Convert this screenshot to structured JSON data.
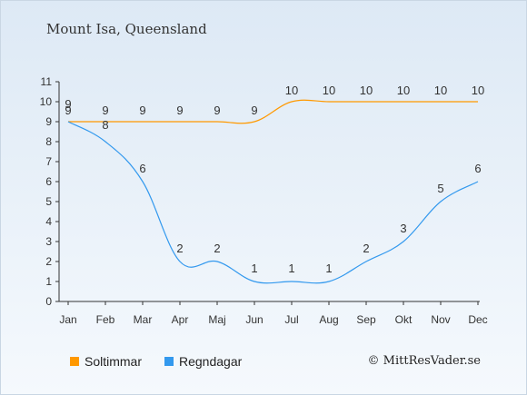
{
  "title": "Mount Isa, Queensland",
  "credit": "© MittResVader.se",
  "colors": {
    "sun": "#ff9900",
    "rain": "#3399ee"
  },
  "chart_data": {
    "type": "line",
    "categories": [
      "Jan",
      "Feb",
      "Mar",
      "Apr",
      "Maj",
      "Jun",
      "Jul",
      "Aug",
      "Sep",
      "Okt",
      "Nov",
      "Dec"
    ],
    "ylim": [
      0,
      11
    ],
    "yticks": [
      0,
      1,
      2,
      3,
      4,
      5,
      6,
      7,
      8,
      9,
      10,
      11
    ],
    "series": [
      {
        "name": "Soltimmar",
        "color": "#ff9900",
        "values": [
          9,
          9,
          9,
          9,
          9,
          9,
          10,
          10,
          10,
          10,
          10,
          10
        ]
      },
      {
        "name": "Regndagar",
        "color": "#3399ee",
        "values": [
          9,
          8,
          6,
          2,
          2,
          1,
          1,
          1,
          2,
          3,
          5,
          6
        ]
      }
    ],
    "legend_position": "bottom-left",
    "grid": false
  }
}
